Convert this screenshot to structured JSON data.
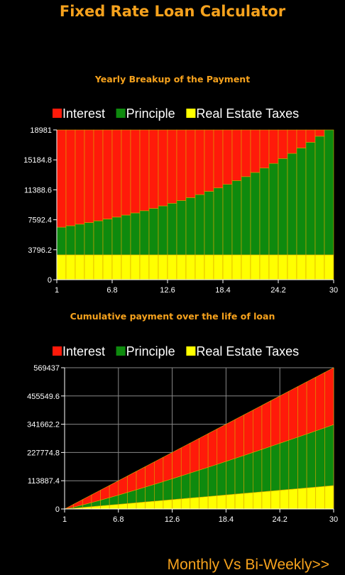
{
  "app": {
    "title": "Fixed Rate Loan Calculator",
    "footer_link": "Monthly Vs Bi-Weekly>>"
  },
  "colors": {
    "accent": "#f6a21d",
    "interest": "#ff1a0a",
    "principle": "#0e8a0e",
    "taxes": "#ffff00",
    "background": "#000000",
    "gridline": "#888888"
  },
  "chart_data": [
    {
      "type": "area",
      "title": "Yearly Breakup of the Payment",
      "legend": [
        "Interest",
        "Principle",
        "Real Estate Taxes"
      ],
      "legend_position": "top",
      "x": [
        1,
        30
      ],
      "xticks": [
        "1",
        "6.8",
        "12.6",
        "18.4",
        "24.2",
        "30"
      ],
      "yticks": [
        "0",
        "3796.2",
        "7592.4",
        "11388.6",
        "15184.8",
        "18981"
      ],
      "ylim": [
        0,
        18981
      ],
      "xlim": [
        1,
        30
      ],
      "grid": false,
      "stack_top": 18981,
      "taxes_per_year": 3150,
      "principle_start": 3500,
      "principle_end": 15831,
      "series": [
        {
          "name": "Real Estate Taxes"
        },
        {
          "name": "Principle"
        },
        {
          "name": "Interest"
        }
      ]
    },
    {
      "type": "area",
      "title": "Cumulative payment over the life of loan",
      "legend": [
        "Interest",
        "Principle",
        "Real Estate Taxes"
      ],
      "legend_position": "top",
      "x": [
        1,
        30
      ],
      "xticks": [
        "1",
        "6.8",
        "12.6",
        "18.4",
        "24.2",
        "30"
      ],
      "yticks": [
        "0",
        "113887.4",
        "227774.8",
        "341662.2",
        "455549.6",
        "569437"
      ],
      "ylim": [
        0,
        569437
      ],
      "xlim": [
        1,
        30
      ],
      "grid": true,
      "series": [
        {
          "name": "Real Estate Taxes",
          "values_end": 94500
        },
        {
          "name": "Principle",
          "values_end": 340000
        },
        {
          "name": "Interest",
          "values_end": 569437
        }
      ]
    }
  ]
}
